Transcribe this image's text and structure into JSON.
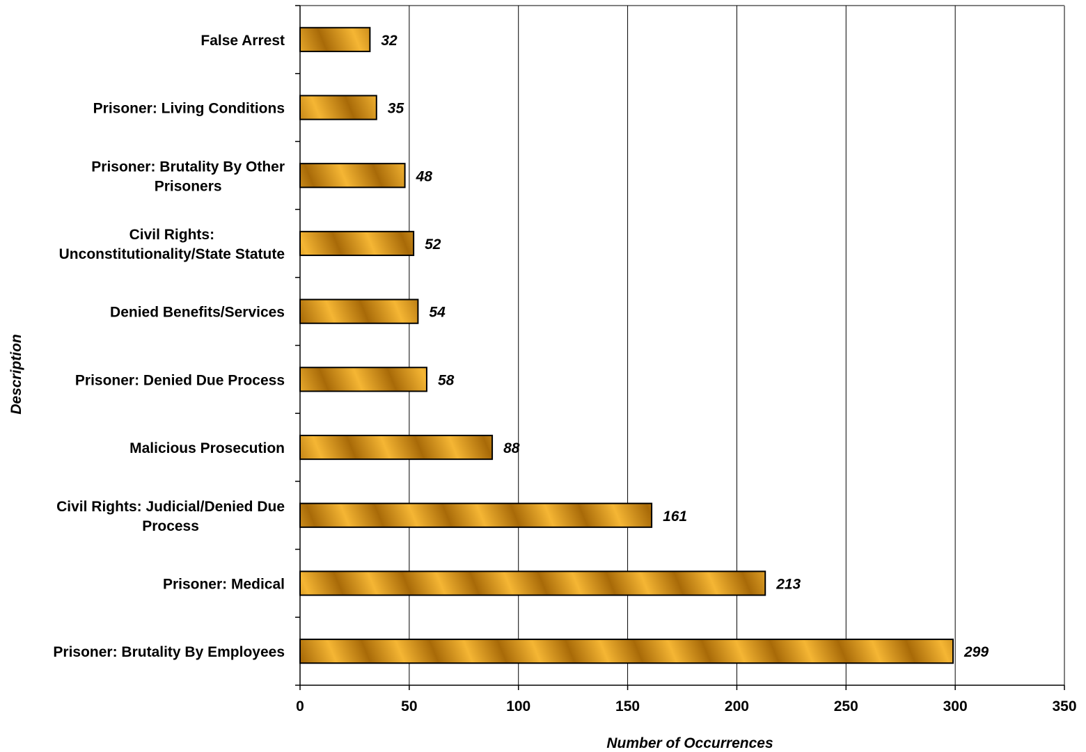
{
  "chart_data": {
    "type": "bar",
    "orientation": "horizontal",
    "categories": [
      "False Arrest",
      "Prisoner: Living Conditions",
      "Prisoner: Brutality By Other Prisoners",
      "Civil Rights: Unconstitutionality/State Statute",
      "Denied Benefits/Services",
      "Prisoner: Denied Due Process",
      "Malicious Prosecution",
      "Civil Rights: Judicial/Denied Due Process",
      "Prisoner: Medical",
      "Prisoner: Brutality By Employees"
    ],
    "category_lines": [
      [
        "False Arrest"
      ],
      [
        "Prisoner: Living Conditions"
      ],
      [
        "Prisoner: Brutality By Other",
        "Prisoners"
      ],
      [
        "Civil Rights:",
        "Unconstitutionality/State Statute"
      ],
      [
        "Denied Benefits/Services"
      ],
      [
        "Prisoner: Denied Due Process"
      ],
      [
        "Malicious Prosecution"
      ],
      [
        "Civil Rights: Judicial/Denied Due",
        "Process"
      ],
      [
        "Prisoner: Medical"
      ],
      [
        "Prisoner: Brutality By Employees"
      ]
    ],
    "values": [
      32,
      35,
      48,
      52,
      54,
      58,
      88,
      161,
      213,
      299
    ],
    "data_labels": [
      "32",
      "35",
      "48",
      "52",
      "54",
      "58",
      "88",
      "161",
      "213",
      "299"
    ],
    "xlabel": "Number of Occurrences",
    "ylabel": "Description",
    "xlim": [
      0,
      350
    ],
    "xticks": [
      0,
      50,
      100,
      150,
      200,
      250,
      300,
      350
    ],
    "xtick_labels": [
      "0",
      "50",
      "100",
      "150",
      "200",
      "250",
      "300",
      "350"
    ],
    "grid": "vertical",
    "legend": "none",
    "colors": {
      "bar_light": "#f5b634",
      "bar_dark": "#a86a08",
      "bar_edge": "#000000",
      "grid": "#000000",
      "frame": "#808080"
    }
  }
}
